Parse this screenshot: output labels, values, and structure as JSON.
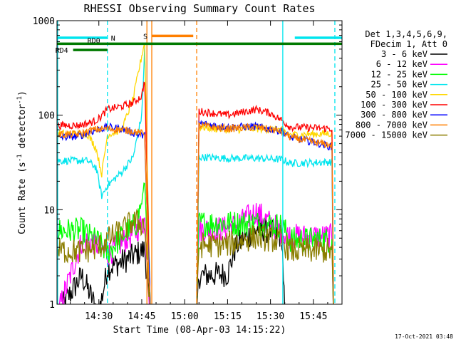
{
  "chart_data": {
    "type": "line",
    "title": "RHESSI Observing Summary Count Rates",
    "xlabel": "Start Time (08-Apr-03 14:15:22)",
    "ylabel_main": "Count Rate (s",
    "ylabel_sup1": "-1",
    "ylabel_mid": " detector",
    "ylabel_sup2": "-1",
    "ylabel_end": ")",
    "y_log": true,
    "ylim": [
      1,
      1000
    ],
    "x_range_minutes": [
      855.37,
      955
    ],
    "x_ticks": [
      {
        "m": 870,
        "label": "14:30"
      },
      {
        "m": 885,
        "label": "14:45"
      },
      {
        "m": 900,
        "label": "15:00"
      },
      {
        "m": 915,
        "label": "15:15"
      },
      {
        "m": 930,
        "label": "15:30"
      },
      {
        "m": 945,
        "label": "15:45"
      }
    ],
    "y_ticks": [
      {
        "v": 1,
        "label": "1"
      },
      {
        "v": 10,
        "label": "10"
      },
      {
        "v": 100,
        "label": "100"
      },
      {
        "v": 1000,
        "label": "1000"
      }
    ],
    "legend_header": [
      "Det 1,3,4,5,6,9,",
      "FDecim 1, Att 0"
    ],
    "footer_date": "17-Oct-2021 03:48",
    "flags": [
      {
        "label": "N",
        "color": "#00e5ee",
        "y": 660,
        "segments": [
          [
            855.37,
            873
          ],
          [
            938.5,
            955
          ]
        ]
      },
      {
        "label": "RD0",
        "color": "#007a00",
        "y": 570,
        "segments": [
          [
            855.37,
            955
          ]
        ]
      },
      {
        "label": "RD4",
        "color": "#007a00",
        "y": 490,
        "segments": [
          [
            861,
            873
          ]
        ]
      },
      {
        "label": "S",
        "color": "#ff7f00",
        "y": 690,
        "segments": [
          [
            888.5,
            903
          ]
        ]
      }
    ],
    "vlines": [
      {
        "m": 855.6,
        "color": "#00e5ee",
        "dash": false
      },
      {
        "m": 873.0,
        "color": "#00e5ee",
        "dash": true
      },
      {
        "m": 886.8,
        "color": "#ff7f00",
        "dash": false
      },
      {
        "m": 888.5,
        "color": "#ff7f00",
        "dash": false
      },
      {
        "m": 904.2,
        "color": "#ff7f00",
        "dash": true
      },
      {
        "m": 934.3,
        "color": "#00e5ee",
        "dash": false
      },
      {
        "m": 952.5,
        "color": "#00e5ee",
        "dash": true
      }
    ],
    "series": [
      {
        "name": "3 - 6 keV",
        "color": "#000000",
        "points": [
          [
            855.6,
            0.8
          ],
          [
            864,
            2.0
          ],
          [
            870,
            0.8
          ],
          [
            873,
            2.4
          ],
          [
            880,
            3.0
          ],
          [
            886,
            3.8
          ],
          [
            888,
            0.8
          ],
          [
            904.2,
            0.8
          ],
          [
            905,
            2.0
          ],
          [
            915,
            2.1
          ],
          [
            918,
            4.2
          ],
          [
            926,
            6.5
          ],
          [
            934,
            5.2
          ],
          [
            935,
            0.8
          ],
          [
            955,
            0.8
          ]
        ]
      },
      {
        "name": "6 - 12 keV",
        "color": "#ff00ff",
        "points": [
          [
            855.6,
            0.8
          ],
          [
            864,
            4.6
          ],
          [
            868,
            4.6
          ],
          [
            873,
            3.4
          ],
          [
            880,
            5.0
          ],
          [
            883,
            6.0
          ],
          [
            886,
            7.8
          ],
          [
            888,
            0.8
          ],
          [
            904.2,
            0.8
          ],
          [
            905,
            6.2
          ],
          [
            915,
            6.3
          ],
          [
            920,
            7.5
          ],
          [
            925,
            9.5
          ],
          [
            930,
            7.2
          ],
          [
            934,
            5.8
          ],
          [
            937,
            5.2
          ],
          [
            951.5,
            5.2
          ],
          [
            952,
            0.8
          ],
          [
            955,
            0.8
          ]
        ]
      },
      {
        "name": "12 - 25 keV",
        "color": "#00ff00",
        "points": [
          [
            855.6,
            6.0
          ],
          [
            864,
            6.0
          ],
          [
            870,
            4.5
          ],
          [
            873,
            3.5
          ],
          [
            880,
            6.0
          ],
          [
            883,
            7.0
          ],
          [
            885,
            12
          ],
          [
            886,
            20
          ],
          [
            888,
            0.8
          ],
          [
            904.2,
            0.8
          ],
          [
            905,
            7.2
          ],
          [
            915,
            7.2
          ],
          [
            925,
            7.2
          ],
          [
            934,
            6.8
          ],
          [
            937,
            4.8
          ],
          [
            951.5,
            4.8
          ],
          [
            952,
            0.8
          ],
          [
            955,
            0.8
          ]
        ]
      },
      {
        "name": "25 - 50 keV",
        "color": "#00e5ee",
        "points": [
          [
            855.6,
            33
          ],
          [
            866,
            33
          ],
          [
            869,
            28
          ],
          [
            871,
            14
          ],
          [
            873,
            18
          ],
          [
            878,
            25
          ],
          [
            882,
            36
          ],
          [
            885,
            100
          ],
          [
            886,
            500
          ],
          [
            888,
            0.8
          ],
          [
            904.2,
            0.8
          ],
          [
            905,
            36
          ],
          [
            915,
            35
          ],
          [
            925,
            35
          ],
          [
            934,
            34
          ],
          [
            937,
            31
          ],
          [
            951.5,
            32
          ],
          [
            952,
            0.8
          ],
          [
            955,
            0.8
          ]
        ]
      },
      {
        "name": "50 - 100 keV",
        "color": "#ffd700",
        "points": [
          [
            855.6,
            64
          ],
          [
            866,
            63
          ],
          [
            869,
            45
          ],
          [
            871,
            24
          ],
          [
            873,
            62
          ],
          [
            878,
            70
          ],
          [
            882,
            150
          ],
          [
            886,
            600
          ],
          [
            888,
            0.8
          ],
          [
            904.2,
            0.8
          ],
          [
            905,
            75
          ],
          [
            915,
            70
          ],
          [
            925,
            72
          ],
          [
            934,
            70
          ],
          [
            937,
            62
          ],
          [
            951.5,
            64
          ],
          [
            952,
            0.8
          ],
          [
            955,
            0.8
          ]
        ]
      },
      {
        "name": "100 - 300 keV",
        "color": "#ff0000",
        "points": [
          [
            855.6,
            78
          ],
          [
            863,
            78
          ],
          [
            868,
            85
          ],
          [
            870,
            92
          ],
          [
            873,
            115
          ],
          [
            878,
            124
          ],
          [
            882,
            135
          ],
          [
            885,
            160
          ],
          [
            886,
            240
          ],
          [
            888,
            0.8
          ],
          [
            904.2,
            0.8
          ],
          [
            905,
            110
          ],
          [
            910,
            105
          ],
          [
            915,
            100
          ],
          [
            925,
            115
          ],
          [
            930,
            105
          ],
          [
            934,
            88
          ],
          [
            937,
            75
          ],
          [
            951.5,
            72
          ],
          [
            952,
            0.8
          ],
          [
            955,
            0.8
          ]
        ]
      },
      {
        "name": "300 - 800 keV",
        "color": "#0000ff",
        "points": [
          [
            855.6,
            58
          ],
          [
            863,
            60
          ],
          [
            868,
            68
          ],
          [
            873,
            75
          ],
          [
            878,
            72
          ],
          [
            882,
            65
          ],
          [
            886,
            60
          ],
          [
            888,
            0.8
          ],
          [
            904.2,
            0.8
          ],
          [
            905,
            82
          ],
          [
            915,
            75
          ],
          [
            925,
            76
          ],
          [
            934,
            68
          ],
          [
            937,
            58
          ],
          [
            945,
            52
          ],
          [
            951.5,
            46
          ],
          [
            952,
            0.8
          ],
          [
            955,
            0.8
          ]
        ]
      },
      {
        "name": "800 - 7000 keV",
        "color": "#ff7f00",
        "points": [
          [
            855.6,
            62
          ],
          [
            863,
            63
          ],
          [
            868,
            70
          ],
          [
            873,
            72
          ],
          [
            878,
            70
          ],
          [
            882,
            68
          ],
          [
            886,
            63
          ],
          [
            888,
            0.8
          ],
          [
            904.2,
            0.8
          ],
          [
            905,
            78
          ],
          [
            915,
            72
          ],
          [
            925,
            75
          ],
          [
            934,
            67
          ],
          [
            937,
            58
          ],
          [
            945,
            52
          ],
          [
            951.5,
            48
          ],
          [
            952,
            0.8
          ],
          [
            955,
            0.8
          ]
        ]
      },
      {
        "name": "7000 - 15000 keV",
        "color": "#8b7d00",
        "points": [
          [
            855.6,
            3.7
          ],
          [
            864,
            3.6
          ],
          [
            870,
            4.0
          ],
          [
            873,
            4.8
          ],
          [
            878,
            6.0
          ],
          [
            882,
            7.5
          ],
          [
            886,
            7.0
          ],
          [
            888,
            0.8
          ],
          [
            904.2,
            0.8
          ],
          [
            905,
            4.2
          ],
          [
            915,
            4.3
          ],
          [
            925,
            5.2
          ],
          [
            934,
            4.6
          ],
          [
            937,
            3.7
          ],
          [
            951.5,
            3.7
          ],
          [
            952,
            0.8
          ],
          [
            955,
            0.8
          ]
        ]
      }
    ]
  }
}
